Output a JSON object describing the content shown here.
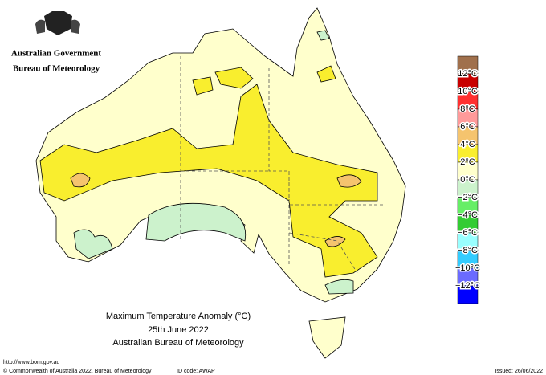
{
  "header": {
    "title": "Australian Government",
    "subtitle": "Bureau of Meteorology"
  },
  "legend": {
    "colors": [
      "#a0704c",
      "#c80000",
      "#ff3030",
      "#ff9a9a",
      "#f5c46e",
      "#f9ee2e",
      "#ffffcc",
      "#ccf2cc",
      "#66ee66",
      "#33cc33",
      "#99ffff",
      "#33ccff",
      "#6b6bff",
      "#0000ff"
    ],
    "labels": [
      "12°C",
      "10°C",
      "8°C",
      "6°C",
      "4°C",
      "2°C",
      "0°C",
      "−2°C",
      "−4°C",
      "−6°C",
      "−8°C",
      "−10°C",
      "−12°C"
    ]
  },
  "caption": {
    "title": "Maximum Temperature Anomaly (°C)",
    "date": "25th June 2022",
    "source": "Australian Bureau of Meteorology"
  },
  "footer": {
    "url": "http://www.bom.gov.au",
    "copyright": "© Commonwealth of Australia 2022, Bureau of Meteorology",
    "id": "ID code: AWAP",
    "issued": "Issued: 26/06/2022"
  }
}
